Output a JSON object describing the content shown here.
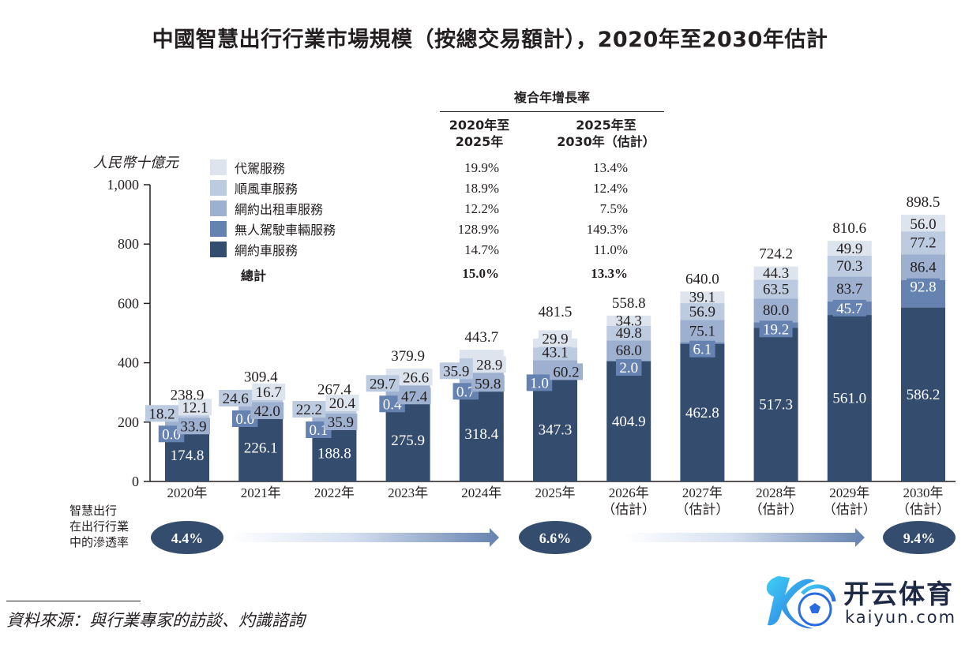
{
  "chart_data": {
    "type": "bar",
    "stacked": true,
    "title": "中國智慧出行行業市場規模（按總交易額計），2020年至2030年估計",
    "ylabel": "人民幣十億元",
    "xlabel": "",
    "ylim": [
      0,
      1000
    ],
    "yticks": [
      "0",
      "200",
      "400",
      "600",
      "800",
      "1,000"
    ],
    "ytick_values": [
      0,
      200,
      400,
      600,
      800,
      1000
    ],
    "grid": false,
    "categories": [
      {
        "line1": "2020年",
        "line2": ""
      },
      {
        "line1": "2021年",
        "line2": ""
      },
      {
        "line1": "2022年",
        "line2": ""
      },
      {
        "line1": "2023年",
        "line2": ""
      },
      {
        "line1": "2024年",
        "line2": ""
      },
      {
        "line1": "2025年",
        "line2": ""
      },
      {
        "line1": "2026年",
        "line2": "（估計）"
      },
      {
        "line1": "2027年",
        "line2": "（估計）"
      },
      {
        "line1": "2028年",
        "line2": "（估計）"
      },
      {
        "line1": "2029年",
        "line2": "（估計）"
      },
      {
        "line1": "2030年",
        "line2": "（估計）"
      }
    ],
    "series": [
      {
        "name": "網約車服務",
        "color": "#344c6e",
        "label_color": "#ffffff",
        "values": [
          174.8,
          226.1,
          188.8,
          275.9,
          318.4,
          347.3,
          404.9,
          462.8,
          517.3,
          561.0,
          586.2
        ]
      },
      {
        "name": "無人駕駛車輛服務",
        "color": "#6682b0",
        "label_color": "#ffffff",
        "values": [
          0.0,
          0.0,
          0.1,
          0.4,
          0.7,
          1.0,
          2.0,
          6.1,
          19.2,
          45.7,
          92.8
        ]
      },
      {
        "name": "網約出租車服務",
        "color": "#9eb0cf",
        "label_color": "#231f20",
        "values": [
          33.9,
          42.0,
          35.9,
          47.4,
          59.8,
          60.2,
          68.0,
          75.1,
          80.0,
          83.7,
          86.4
        ]
      },
      {
        "name": "順風車服務",
        "color": "#bccbe0",
        "label_color": "#231f20",
        "values": [
          18.2,
          24.6,
          22.2,
          29.7,
          35.9,
          43.1,
          49.8,
          56.9,
          63.5,
          70.3,
          77.2
        ]
      },
      {
        "name": "代駕服務",
        "color": "#dde4ee",
        "label_color": "#231f20",
        "values": [
          12.1,
          16.7,
          20.4,
          26.6,
          28.9,
          29.9,
          34.3,
          39.1,
          44.3,
          49.9,
          56.0
        ]
      }
    ],
    "totals": [
      238.9,
      309.4,
      267.4,
      379.9,
      443.7,
      481.5,
      558.8,
      640.0,
      724.2,
      810.6,
      898.5
    ],
    "legend_position": "top-left"
  },
  "cagr_table": {
    "heading": "複合年增長率",
    "col1": {
      "line1": "2020年至",
      "line2": "2025年"
    },
    "col2": {
      "line1": "2025年至",
      "line2": "2030年（估計）"
    },
    "rows": [
      {
        "label": "代駕服務",
        "color": "#dde4ee",
        "c1": "19.9%",
        "c2": "13.4%"
      },
      {
        "label": "順風車服務",
        "color": "#bccbe0",
        "c1": "18.9%",
        "c2": "12.4%"
      },
      {
        "label": "網約出租車服務",
        "color": "#9eb0cf",
        "c1": "12.2%",
        "c2": "7.5%"
      },
      {
        "label": "無人駕駛車輛服務",
        "color": "#6682b0",
        "c1": "128.9%",
        "c2": "149.3%"
      },
      {
        "label": "網約車服務",
        "color": "#344c6e",
        "c1": "14.7%",
        "c2": "11.0%"
      }
    ],
    "total": {
      "label": "總計",
      "c1": "15.0%",
      "c2": "13.3%"
    }
  },
  "penetration": {
    "label_lines": [
      "智慧出行",
      "在出行行業",
      "中的滲透率"
    ],
    "values": [
      {
        "year": "2020年",
        "value": "4.4%"
      },
      {
        "year": "2025年",
        "value": "6.6%"
      },
      {
        "year": "2030年",
        "value": "9.4%"
      }
    ],
    "ellipse_color": "#344c6e",
    "arrow_color": "#6682b0"
  },
  "source": "資料來源：與行業專家的訪談、灼識諮詢",
  "watermark": {
    "name_cn": "开云体育",
    "name_en": "kaiyun.com",
    "icon": "kaiyun-logo-icon"
  }
}
